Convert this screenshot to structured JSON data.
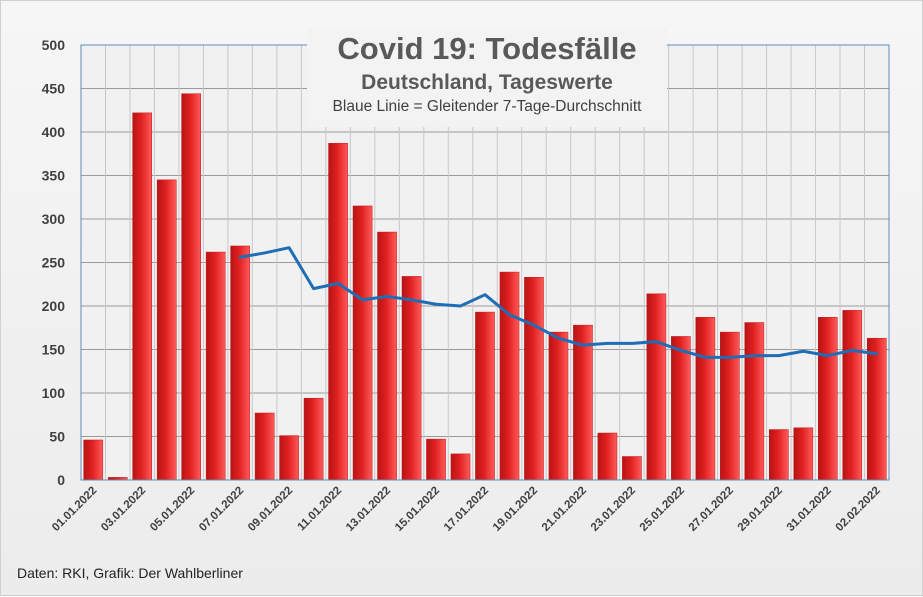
{
  "chart_data": {
    "type": "bar",
    "title": "Covid 19: Todesfälle",
    "subtitle": "Deutschland, Tageswerte",
    "annotation": "Blaue Linie = Gleitender 7-Tage-Durchschnitt",
    "source": "Daten: RKI, Grafik: Der Wahlberliner",
    "ylim": [
      0,
      500
    ],
    "yticks": [
      0,
      50,
      100,
      150,
      200,
      250,
      300,
      350,
      400,
      450,
      500
    ],
    "grid": true,
    "categories": [
      "01.01.2022",
      "02.01.2022",
      "03.01.2022",
      "04.01.2022",
      "05.01.2022",
      "06.01.2022",
      "07.01.2022",
      "08.01.2022",
      "09.01.2022",
      "10.01.2022",
      "11.01.2022",
      "12.01.2022",
      "13.01.2022",
      "14.01.2022",
      "15.01.2022",
      "16.01.2022",
      "17.01.2022",
      "18.01.2022",
      "19.01.2022",
      "20.01.2022",
      "21.01.2022",
      "22.01.2022",
      "23.01.2022",
      "24.01.2022",
      "25.01.2022",
      "26.01.2022",
      "27.01.2022",
      "28.01.2022",
      "29.01.2022",
      "30.01.2022",
      "31.01.2022",
      "01.02.2022",
      "02.02.2022"
    ],
    "xtick_labels": [
      "01.01.2022",
      "03.01.2022",
      "05.01.2022",
      "07.01.2022",
      "09.01.2022",
      "11.01.2022",
      "13.01.2022",
      "15.01.2022",
      "17.01.2022",
      "19.01.2022",
      "21.01.2022",
      "23.01.2022",
      "25.01.2022",
      "27.01.2022",
      "29.01.2022",
      "31.01.2022",
      "02.02.2022"
    ],
    "series": [
      {
        "type": "bar",
        "color": "#e02020",
        "values": [
          46,
          3,
          422,
          345,
          444,
          262,
          269,
          77,
          51,
          94,
          387,
          315,
          285,
          234,
          47,
          30,
          193,
          239,
          233,
          170,
          178,
          54,
          27,
          214,
          165,
          187,
          170,
          181,
          58,
          60,
          187,
          195,
          163
        ]
      },
      {
        "type": "line",
        "color": "#1f6db5",
        "values": [
          null,
          null,
          null,
          null,
          null,
          null,
          256,
          261,
          267,
          220,
          226,
          207,
          211,
          207,
          202,
          200,
          213,
          190,
          178,
          163,
          155,
          157,
          157,
          159,
          149,
          141,
          141,
          143,
          143,
          148,
          143,
          149,
          145
        ]
      }
    ]
  }
}
